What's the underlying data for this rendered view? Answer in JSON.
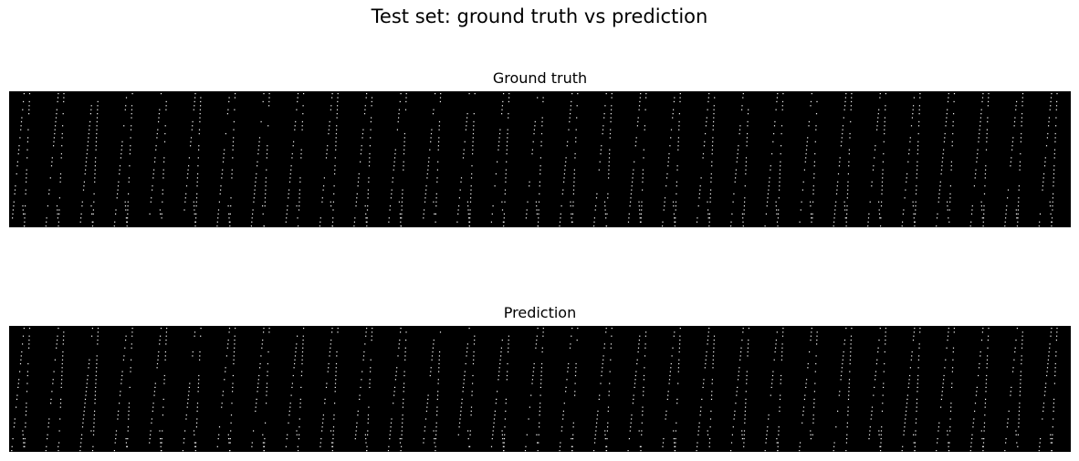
{
  "figure": {
    "suptitle": "Test set: ground truth vs prediction"
  },
  "chart_data": [
    {
      "type": "heatmap",
      "title": "Ground truth",
      "background_color": "#000000",
      "point_color": "#ffffff",
      "axes_visible": false,
      "pattern": "sparse white dots in repeating diagonal bands on black",
      "bands": 31
    },
    {
      "type": "heatmap",
      "title": "Prediction",
      "background_color": "#000000",
      "point_color": "#ffffff",
      "axes_visible": false,
      "pattern": "sparse white dots in repeating diagonal bands on black",
      "bands": 31
    }
  ]
}
